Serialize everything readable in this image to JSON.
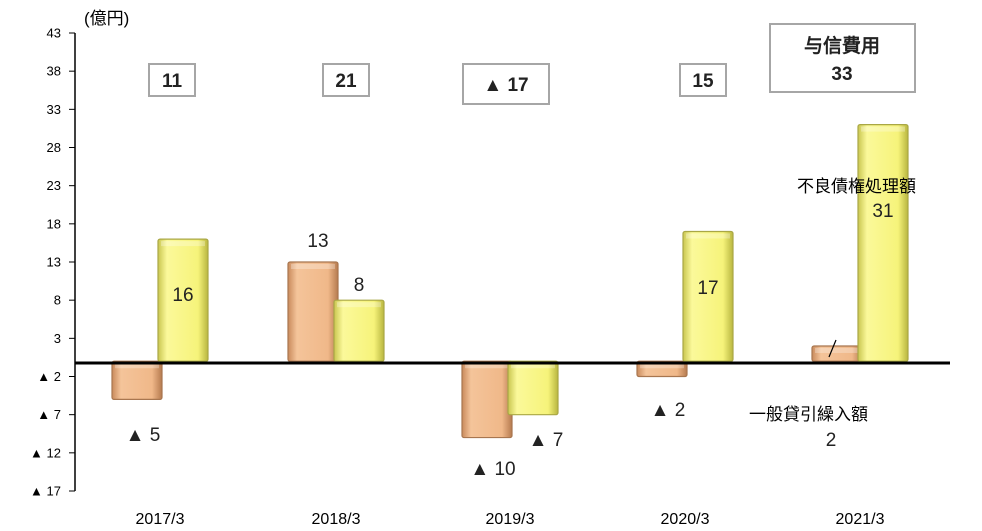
{
  "chart_data": {
    "type": "bar",
    "unit_label": "(億円)",
    "categories": [
      "2017/3",
      "2018/3",
      "2019/3",
      "2020/3",
      "2021/3"
    ],
    "yticks": [
      43,
      38,
      33,
      28,
      23,
      18,
      13,
      8,
      3,
      -2,
      -7,
      -12,
      -17
    ],
    "ytick_labels": [
      "43",
      "38",
      "33",
      "28",
      "23",
      "18",
      "13",
      "8",
      "3",
      "▲ 2",
      "▲ 7",
      "▲ 12",
      "▲ 17"
    ],
    "ylim": [
      -17,
      43
    ],
    "series": [
      {
        "name": "一般貸引繰入額",
        "color": "#f0b889",
        "values": [
          -5,
          13,
          -10,
          -2,
          2
        ],
        "labels": [
          "▲ 5",
          "13",
          "▲ 10",
          "▲ 2",
          "2"
        ]
      },
      {
        "name": "不良債権処理額",
        "color": "#f6f37a",
        "values": [
          16,
          8,
          -7,
          17,
          31
        ],
        "labels": [
          "16",
          "8",
          "▲ 7",
          "17",
          "31"
        ]
      }
    ],
    "totals": {
      "title": "与信費用",
      "values": [
        "11",
        "21",
        "▲ 17",
        "15",
        "33"
      ]
    }
  }
}
